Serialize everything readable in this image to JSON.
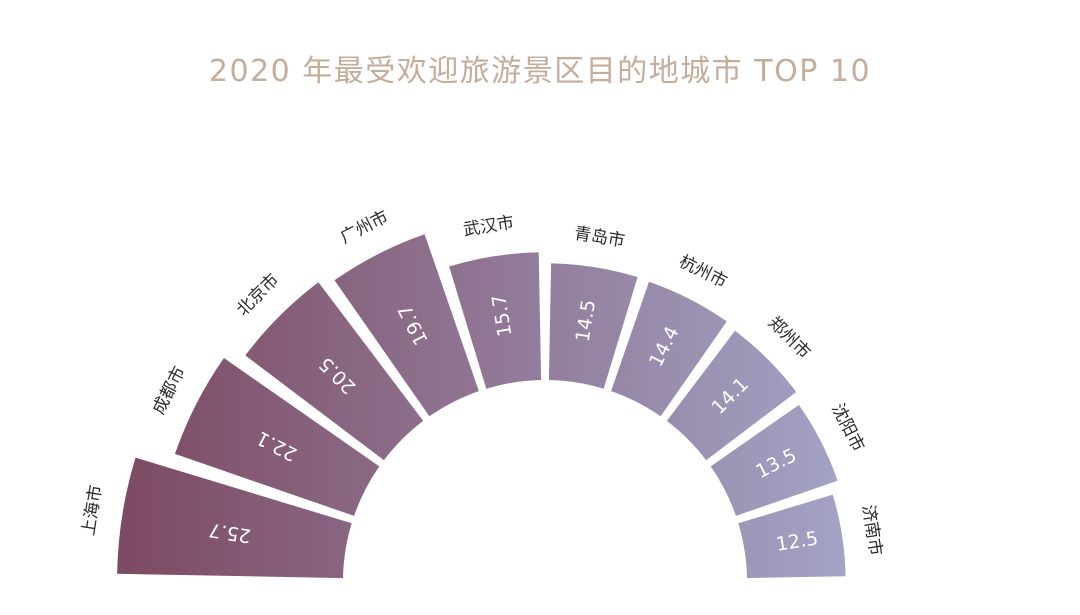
{
  "chart_data": {
    "type": "bar",
    "polar": true,
    "title": "2020 年最受欢迎旅游景区目的地城市 TOP 10",
    "categories": [
      "上海市",
      "成都市",
      "北京市",
      "广州市",
      "武汉市",
      "青岛市",
      "杭州市",
      "郑州市",
      "沈阳市",
      "济南市"
    ],
    "values": [
      25.7,
      22.1,
      20.5,
      19.7,
      15.7,
      14.5,
      14.4,
      14.1,
      13.5,
      12.5
    ],
    "value_labels": [
      "25.7",
      "22.1",
      "20.5",
      "19.7",
      "15.7",
      "14.5",
      "14.4",
      "14.1",
      "13.5",
      "12.5"
    ],
    "legend": "none",
    "grid": false,
    "color_start": "#7d4a63",
    "color_end": "#a9b2d6"
  }
}
